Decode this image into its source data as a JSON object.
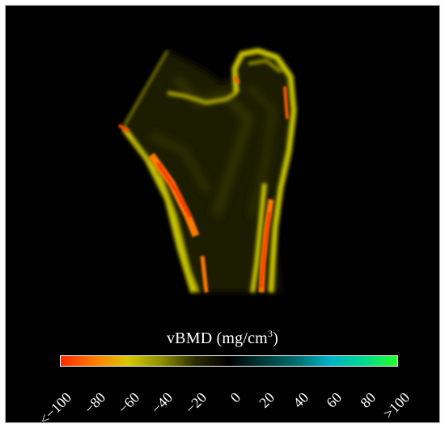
{
  "figure": {
    "description_hidden": false,
    "colorbar": {
      "title_text": "vBMD (mg/cm",
      "title_sup": "3",
      "title_close": ")",
      "ticks": [
        "<−100",
        "−80",
        "−60",
        "−40",
        "−20",
        "0",
        "20",
        "40",
        "60",
        "80",
        ">100"
      ],
      "colors": [
        "#ff2a00",
        "#ff7a00",
        "#d8c800",
        "#8f8f00",
        "#2b2b00",
        "#000000",
        "#003a3a",
        "#006e6e",
        "#00b2c8",
        "#00d890",
        "#26ff2a"
      ]
    }
  }
}
